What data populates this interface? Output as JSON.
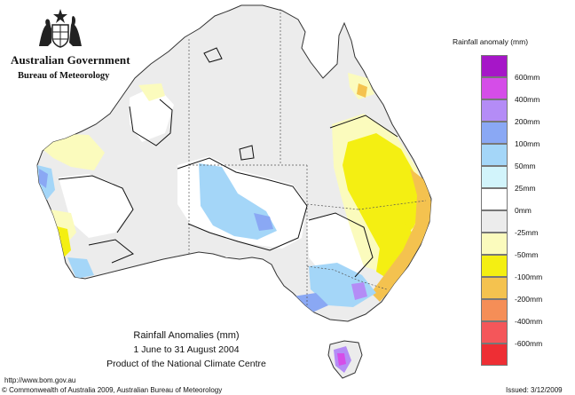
{
  "header": {
    "government": "Australian Government",
    "agency": "Bureau of Meteorology"
  },
  "legend": {
    "title": "Rainfall anomaly (mm)",
    "items": [
      {
        "label": "600mm",
        "color": "#a616c8"
      },
      {
        "label": "400mm",
        "color": "#d54de8"
      },
      {
        "label": "200mm",
        "color": "#b48cf6"
      },
      {
        "label": "100mm",
        "color": "#8aa8f4"
      },
      {
        "label": "50mm",
        "color": "#a4d6f8"
      },
      {
        "label": "25mm",
        "color": "#d2f4fb"
      },
      {
        "label": "0mm",
        "color": "#ffffff"
      },
      {
        "label": "-25mm",
        "color": "#ececec"
      },
      {
        "label": "-50mm",
        "color": "#fbfbbd"
      },
      {
        "label": "-100mm",
        "color": "#f4ef12"
      },
      {
        "label": "-200mm",
        "color": "#f4c24f"
      },
      {
        "label": "-400mm",
        "color": "#f58e57"
      },
      {
        "label": "-600mm",
        "color": "#f4565a"
      },
      {
        "label": "",
        "color": "#ee2e34"
      }
    ]
  },
  "caption": {
    "title": "Rainfall Anomalies (mm)",
    "period": "1 June to 31 August 2004",
    "product": "Product of the National Climate Centre"
  },
  "footer": {
    "url": "http://www.bom.gov.au",
    "copyright": "© Commonwealth of Australia 2009, Australian Bureau of Meteorology",
    "issued": "Issued: 3/12/2009"
  }
}
